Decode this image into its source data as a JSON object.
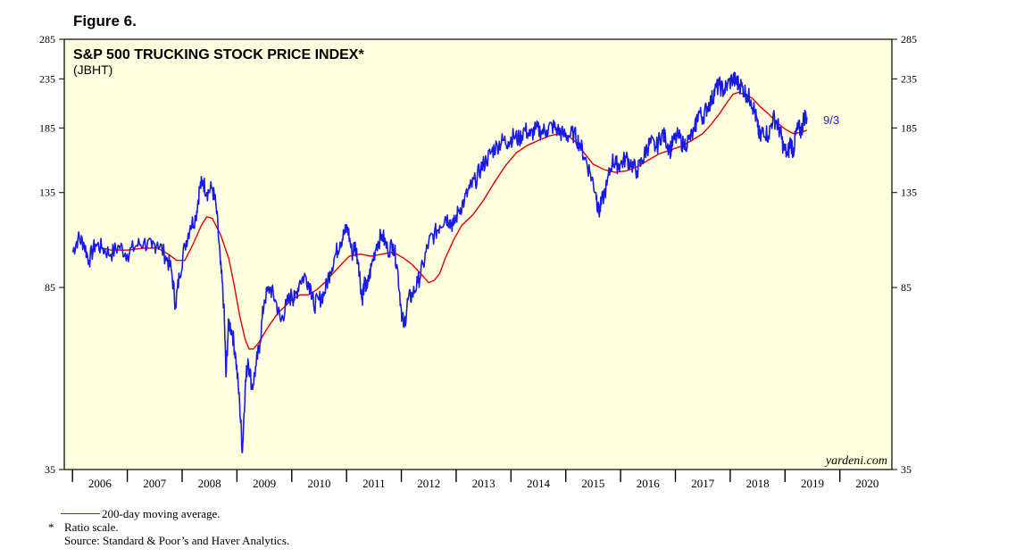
{
  "figure_label": "Figure 6.",
  "chart_data": {
    "type": "line",
    "title": "S&P 500 TRUCKING STOCK PRICE INDEX*",
    "subtitle": "(JBHT)",
    "y_scale": "log",
    "ylim": [
      35,
      285
    ],
    "y_ticks": [
      35,
      85,
      135,
      185,
      235,
      285
    ],
    "xlim": [
      2005.85,
      2020.95
    ],
    "x_tick_labels": [
      "2006",
      "2007",
      "2008",
      "2009",
      "2010",
      "2011",
      "2012",
      "2013",
      "2014",
      "2015",
      "2016",
      "2017",
      "2018",
      "2019",
      "2020"
    ],
    "end_annotation": "9/3",
    "watermark": "yardeni.com",
    "series": [
      {
        "name": "S&P 500 Trucking Stock Price Index",
        "color": "#1a1ae6",
        "points": [
          [
            2006.0,
            101
          ],
          [
            2006.1,
            108
          ],
          [
            2006.2,
            106
          ],
          [
            2006.3,
            97
          ],
          [
            2006.42,
            105
          ],
          [
            2006.55,
            103
          ],
          [
            2006.7,
            100
          ],
          [
            2006.85,
            104
          ],
          [
            2007.0,
            100
          ],
          [
            2007.15,
            104
          ],
          [
            2007.3,
            106
          ],
          [
            2007.45,
            103
          ],
          [
            2007.55,
            106
          ],
          [
            2007.7,
            99
          ],
          [
            2007.8,
            93
          ],
          [
            2007.88,
            78
          ],
          [
            2007.95,
            90
          ],
          [
            2008.05,
            104
          ],
          [
            2008.15,
            115
          ],
          [
            2008.25,
            120
          ],
          [
            2008.32,
            138
          ],
          [
            2008.38,
            143
          ],
          [
            2008.45,
            135
          ],
          [
            2008.55,
            138
          ],
          [
            2008.62,
            126
          ],
          [
            2008.7,
            95
          ],
          [
            2008.76,
            78
          ],
          [
            2008.8,
            55
          ],
          [
            2008.85,
            72
          ],
          [
            2008.92,
            68
          ],
          [
            2008.98,
            60
          ],
          [
            2009.05,
            48
          ],
          [
            2009.1,
            38
          ],
          [
            2009.15,
            52
          ],
          [
            2009.2,
            60
          ],
          [
            2009.28,
            52
          ],
          [
            2009.35,
            58
          ],
          [
            2009.42,
            65
          ],
          [
            2009.5,
            80
          ],
          [
            2009.6,
            85
          ],
          [
            2009.7,
            80
          ],
          [
            2009.8,
            72
          ],
          [
            2009.9,
            78
          ],
          [
            2010.0,
            82
          ],
          [
            2010.05,
            80
          ],
          [
            2010.15,
            88
          ],
          [
            2010.25,
            90
          ],
          [
            2010.35,
            85
          ],
          [
            2010.4,
            78
          ],
          [
            2010.5,
            80
          ],
          [
            2010.6,
            83
          ],
          [
            2010.7,
            92
          ],
          [
            2010.8,
            100
          ],
          [
            2010.88,
            106
          ],
          [
            2010.95,
            110
          ],
          [
            2011.02,
            114
          ],
          [
            2011.1,
            100
          ],
          [
            2011.15,
            105
          ],
          [
            2011.22,
            96
          ],
          [
            2011.28,
            80
          ],
          [
            2011.32,
            86
          ],
          [
            2011.38,
            85
          ],
          [
            2011.45,
            94
          ],
          [
            2011.55,
            105
          ],
          [
            2011.65,
            110
          ],
          [
            2011.75,
            102
          ],
          [
            2011.85,
            105
          ],
          [
            2011.92,
            95
          ],
          [
            2012.0,
            76
          ],
          [
            2012.05,
            70
          ],
          [
            2012.12,
            80
          ],
          [
            2012.2,
            82
          ],
          [
            2012.3,
            87
          ],
          [
            2012.4,
            95
          ],
          [
            2012.5,
            106
          ],
          [
            2012.6,
            110
          ],
          [
            2012.7,
            115
          ],
          [
            2012.8,
            120
          ],
          [
            2012.88,
            118
          ],
          [
            2012.95,
            115
          ],
          [
            2013.05,
            124
          ],
          [
            2013.15,
            130
          ],
          [
            2013.25,
            138
          ],
          [
            2013.35,
            143
          ],
          [
            2013.45,
            152
          ],
          [
            2013.55,
            158
          ],
          [
            2013.65,
            165
          ],
          [
            2013.75,
            170
          ],
          [
            2013.85,
            174
          ],
          [
            2013.95,
            173
          ],
          [
            2014.05,
            178
          ],
          [
            2014.15,
            175
          ],
          [
            2014.25,
            184
          ],
          [
            2014.35,
            178
          ],
          [
            2014.45,
            184
          ],
          [
            2014.55,
            182
          ],
          [
            2014.65,
            183
          ],
          [
            2014.75,
            187
          ],
          [
            2014.85,
            183
          ],
          [
            2014.95,
            179
          ],
          [
            2015.05,
            178
          ],
          [
            2015.15,
            180
          ],
          [
            2015.25,
            172
          ],
          [
            2015.35,
            160
          ],
          [
            2015.45,
            148
          ],
          [
            2015.55,
            135
          ],
          [
            2015.6,
            122
          ],
          [
            2015.65,
            128
          ],
          [
            2015.75,
            140
          ],
          [
            2015.85,
            158
          ],
          [
            2015.92,
            155
          ],
          [
            2016.0,
            155
          ],
          [
            2016.1,
            160
          ],
          [
            2016.2,
            155
          ],
          [
            2016.3,
            150
          ],
          [
            2016.4,
            158
          ],
          [
            2016.48,
            168
          ],
          [
            2016.55,
            172
          ],
          [
            2016.65,
            168
          ],
          [
            2016.75,
            180
          ],
          [
            2016.82,
            176
          ],
          [
            2016.9,
            166
          ],
          [
            2016.95,
            172
          ],
          [
            2017.05,
            178
          ],
          [
            2017.15,
            170
          ],
          [
            2017.25,
            175
          ],
          [
            2017.35,
            182
          ],
          [
            2017.42,
            200
          ],
          [
            2017.5,
            195
          ],
          [
            2017.58,
            205
          ],
          [
            2017.66,
            212
          ],
          [
            2017.72,
            222
          ],
          [
            2017.8,
            228
          ],
          [
            2017.88,
            222
          ],
          [
            2017.95,
            228
          ],
          [
            2018.05,
            236
          ],
          [
            2018.1,
            232
          ],
          [
            2018.15,
            230
          ],
          [
            2018.22,
            226
          ],
          [
            2018.3,
            218
          ],
          [
            2018.38,
            212
          ],
          [
            2018.45,
            200
          ],
          [
            2018.5,
            186
          ],
          [
            2018.55,
            175
          ],
          [
            2018.6,
            185
          ],
          [
            2018.7,
            178
          ],
          [
            2018.78,
            195
          ],
          [
            2018.85,
            190
          ],
          [
            2018.92,
            180
          ],
          [
            2018.97,
            168
          ],
          [
            2019.05,
            162
          ],
          [
            2019.1,
            174
          ],
          [
            2019.15,
            165
          ],
          [
            2019.2,
            180
          ],
          [
            2019.25,
            185
          ],
          [
            2019.3,
            182
          ],
          [
            2019.35,
            196
          ],
          [
            2019.4,
            195
          ]
        ]
      },
      {
        "name": "200-day moving average",
        "color": "#e00000",
        "points": [
          [
            2006.55,
            103
          ],
          [
            2006.7,
            102
          ],
          [
            2007.0,
            102
          ],
          [
            2007.3,
            103
          ],
          [
            2007.55,
            103
          ],
          [
            2007.75,
            100
          ],
          [
            2007.9,
            97
          ],
          [
            2008.05,
            97
          ],
          [
            2008.2,
            105
          ],
          [
            2008.35,
            115
          ],
          [
            2008.45,
            120
          ],
          [
            2008.55,
            119
          ],
          [
            2008.7,
            110
          ],
          [
            2008.85,
            98
          ],
          [
            2008.95,
            86
          ],
          [
            2009.05,
            74
          ],
          [
            2009.15,
            66
          ],
          [
            2009.22,
            63
          ],
          [
            2009.3,
            63
          ],
          [
            2009.4,
            65
          ],
          [
            2009.5,
            68
          ],
          [
            2009.6,
            71
          ],
          [
            2009.75,
            75
          ],
          [
            2009.9,
            78
          ],
          [
            2010.0,
            80
          ],
          [
            2010.15,
            82
          ],
          [
            2010.3,
            82
          ],
          [
            2010.45,
            84
          ],
          [
            2010.6,
            87
          ],
          [
            2010.75,
            91
          ],
          [
            2010.9,
            95
          ],
          [
            2011.05,
            99
          ],
          [
            2011.25,
            100
          ],
          [
            2011.45,
            99
          ],
          [
            2011.65,
            100
          ],
          [
            2011.85,
            101
          ],
          [
            2012.05,
            98
          ],
          [
            2012.2,
            95
          ],
          [
            2012.35,
            91
          ],
          [
            2012.5,
            87
          ],
          [
            2012.6,
            88
          ],
          [
            2012.7,
            91
          ],
          [
            2012.8,
            98
          ],
          [
            2012.95,
            107
          ],
          [
            2013.1,
            115
          ],
          [
            2013.3,
            121
          ],
          [
            2013.5,
            130
          ],
          [
            2013.7,
            142
          ],
          [
            2013.9,
            154
          ],
          [
            2014.1,
            164
          ],
          [
            2014.3,
            170
          ],
          [
            2014.5,
            174
          ],
          [
            2014.7,
            178
          ],
          [
            2014.9,
            180
          ],
          [
            2015.05,
            178
          ],
          [
            2015.2,
            172
          ],
          [
            2015.35,
            163
          ],
          [
            2015.5,
            155
          ],
          [
            2015.7,
            151
          ],
          [
            2015.9,
            149
          ],
          [
            2016.1,
            150
          ],
          [
            2016.3,
            153
          ],
          [
            2016.5,
            158
          ],
          [
            2016.7,
            163
          ],
          [
            2016.9,
            166
          ],
          [
            2017.1,
            169
          ],
          [
            2017.3,
            174
          ],
          [
            2017.5,
            180
          ],
          [
            2017.65,
            188
          ],
          [
            2017.8,
            198
          ],
          [
            2017.95,
            210
          ],
          [
            2018.05,
            218
          ],
          [
            2018.15,
            220
          ],
          [
            2018.25,
            218
          ],
          [
            2018.4,
            214
          ],
          [
            2018.55,
            205
          ],
          [
            2018.7,
            198
          ],
          [
            2018.85,
            190
          ],
          [
            2019.0,
            184
          ],
          [
            2019.15,
            180
          ],
          [
            2019.3,
            181
          ],
          [
            2019.4,
            183
          ]
        ]
      }
    ]
  },
  "footnotes": {
    "moving_average_label": "200-day moving average.",
    "star": "*",
    "ratio_scale": "Ratio scale.",
    "source": "Source: Standard & Poor’s and Haver Analytics."
  }
}
